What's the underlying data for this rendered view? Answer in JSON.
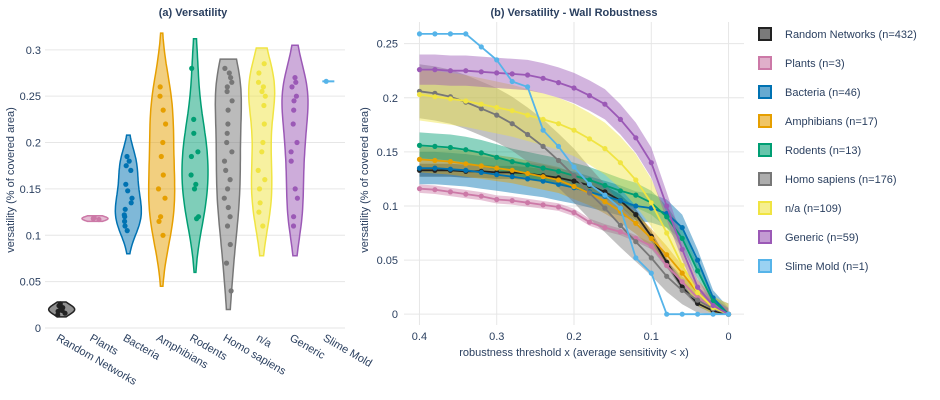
{
  "colors": {
    "Random Networks": "#222222",
    "Plants": "#cc79a7",
    "Bacteria": "#0072b2",
    "Amphibians": "#e69f00",
    "Rodents": "#009e73",
    "Homo sapiens": "#777777",
    "n/a": "#f0e442",
    "Generic": "#9b59b6",
    "Slime Mold": "#56b4e9"
  },
  "legend": [
    {
      "name": "Random Networks",
      "label": "Random Networks (n=432)"
    },
    {
      "name": "Plants",
      "label": "Plants (n=3)"
    },
    {
      "name": "Bacteria",
      "label": "Bacteria (n=46)"
    },
    {
      "name": "Amphibians",
      "label": "Amphibians (n=17)"
    },
    {
      "name": "Rodents",
      "label": "Rodents (n=13)"
    },
    {
      "name": "Homo sapiens",
      "label": "Homo sapiens (n=176)"
    },
    {
      "name": "n/a",
      "label": "n/a (n=109)"
    },
    {
      "name": "Generic",
      "label": "Generic (n=59)"
    },
    {
      "name": "Slime Mold",
      "label": "Slime Mold (n=1)"
    }
  ],
  "chart_data": [
    {
      "type": "violin",
      "title": "(a) Versatility",
      "xlabel": "",
      "ylabel": "versatility (% of covered area)",
      "ylim": [
        0,
        0.33
      ],
      "yticks": [
        0,
        0.05,
        0.1,
        0.15,
        0.2,
        0.25,
        0.3
      ],
      "ytick_labels": [
        "0",
        "0.05",
        "0.1",
        "0.15",
        "0.2",
        "0.25",
        "0.3"
      ],
      "grid": true,
      "categories": [
        "Random Networks",
        "Plants",
        "Bacteria",
        "Amphibians",
        "Rodents",
        "Homo sapiens",
        "n/a",
        "Generic",
        "Slime Mold"
      ],
      "series": [
        {
          "name": "Random Networks",
          "range": [
            0.012,
            0.028
          ],
          "points": [
            0.014,
            0.016,
            0.018,
            0.019,
            0.02,
            0.021,
            0.022,
            0.024,
            0.026
          ]
        },
        {
          "name": "Plants",
          "range": [
            0.115,
            0.121
          ],
          "points": [
            0.117,
            0.118,
            0.119
          ]
        },
        {
          "name": "Bacteria",
          "range": [
            0.08,
            0.208
          ],
          "points": [
            0.105,
            0.11,
            0.115,
            0.12,
            0.122,
            0.128,
            0.135,
            0.14,
            0.148,
            0.155,
            0.17,
            0.175,
            0.18,
            0.185
          ]
        },
        {
          "name": "Amphibians",
          "range": [
            0.045,
            0.318
          ],
          "points": [
            0.1,
            0.115,
            0.12,
            0.14,
            0.15,
            0.165,
            0.185,
            0.2,
            0.22,
            0.235,
            0.25,
            0.26
          ]
        },
        {
          "name": "Rodents",
          "range": [
            0.06,
            0.312
          ],
          "points": [
            0.118,
            0.12,
            0.15,
            0.155,
            0.165,
            0.185,
            0.19,
            0.21,
            0.225,
            0.28
          ]
        },
        {
          "name": "Homo sapiens",
          "range": [
            0.02,
            0.29
          ],
          "points": [
            0.04,
            0.07,
            0.09,
            0.11,
            0.12,
            0.13,
            0.14,
            0.15,
            0.16,
            0.17,
            0.18,
            0.19,
            0.2,
            0.21,
            0.22,
            0.235,
            0.245,
            0.255,
            0.26,
            0.265,
            0.27,
            0.275,
            0.28
          ]
        },
        {
          "name": "n/a",
          "range": [
            0.078,
            0.302
          ],
          "points": [
            0.11,
            0.125,
            0.135,
            0.15,
            0.16,
            0.17,
            0.19,
            0.2,
            0.22,
            0.24,
            0.25,
            0.255,
            0.26,
            0.265,
            0.275,
            0.285
          ]
        },
        {
          "name": "Generic",
          "range": [
            0.078,
            0.305
          ],
          "points": [
            0.11,
            0.12,
            0.14,
            0.15,
            0.18,
            0.19,
            0.2,
            0.22,
            0.235,
            0.245,
            0.25,
            0.26,
            0.265,
            0.27
          ]
        },
        {
          "name": "Slime Mold",
          "range": [
            0.266,
            0.266
          ],
          "points": [
            0.266
          ]
        }
      ]
    },
    {
      "type": "line",
      "title": "(b) Versatility - Wall Robustness",
      "xlabel": "robustness threshold x (average sensitivity < x)",
      "ylabel": "versatility (% of covered area)",
      "xlim": [
        0.42,
        -0.02
      ],
      "ylim": [
        -0.01,
        0.27
      ],
      "xticks": [
        0.4,
        0.3,
        0.2,
        0.1,
        0
      ],
      "xtick_labels": [
        "0.4",
        "0.3",
        "0.2",
        "0.1",
        "0"
      ],
      "yticks": [
        0,
        0.05,
        0.1,
        0.15,
        0.2,
        0.25
      ],
      "ytick_labels": [
        "0",
        "0.05",
        "0.1",
        "0.15",
        "0.2",
        "0.25"
      ],
      "grid": true,
      "x": [
        0.4,
        0.38,
        0.36,
        0.34,
        0.32,
        0.3,
        0.28,
        0.26,
        0.24,
        0.22,
        0.2,
        0.18,
        0.16,
        0.14,
        0.12,
        0.1,
        0.08,
        0.06,
        0.04,
        0.02,
        0
      ],
      "series": [
        {
          "name": "Random Networks",
          "band": 0.006,
          "values": [
            0.133,
            0.133,
            0.133,
            0.132,
            0.132,
            0.131,
            0.131,
            0.13,
            0.128,
            0.126,
            0.123,
            0.119,
            0.113,
            0.105,
            0.092,
            0.072,
            0.048,
            0.025,
            0.01,
            0.003,
            0
          ]
        },
        {
          "name": "Plants",
          "band": 0.004,
          "values": [
            0.116,
            0.115,
            0.113,
            0.111,
            0.109,
            0.106,
            0.105,
            0.103,
            0.101,
            0.099,
            0.094,
            0.085,
            0.08,
            0.076,
            0.07,
            0.063,
            0.045,
            0.03,
            0.015,
            0.005,
            0
          ]
        },
        {
          "name": "Bacteria",
          "band": 0.015,
          "values": [
            0.135,
            0.135,
            0.134,
            0.133,
            0.131,
            0.129,
            0.127,
            0.125,
            0.123,
            0.12,
            0.117,
            0.113,
            0.109,
            0.105,
            0.1,
            0.098,
            0.093,
            0.08,
            0.05,
            0.015,
            0
          ]
        },
        {
          "name": "Amphibians",
          "band": 0.012,
          "values": [
            0.143,
            0.142,
            0.141,
            0.139,
            0.137,
            0.135,
            0.133,
            0.13,
            0.127,
            0.124,
            0.118,
            0.112,
            0.104,
            0.095,
            0.084,
            0.07,
            0.055,
            0.038,
            0.02,
            0.006,
            0
          ]
        },
        {
          "name": "Rodents",
          "band": 0.012,
          "values": [
            0.156,
            0.155,
            0.154,
            0.152,
            0.149,
            0.145,
            0.141,
            0.138,
            0.135,
            0.132,
            0.128,
            0.124,
            0.119,
            0.114,
            0.11,
            0.103,
            0.09,
            0.07,
            0.04,
            0.012,
            0
          ]
        },
        {
          "name": "Homo sapiens",
          "band": 0.025,
          "values": [
            0.206,
            0.204,
            0.201,
            0.196,
            0.19,
            0.184,
            0.176,
            0.166,
            0.155,
            0.142,
            0.128,
            0.112,
            0.098,
            0.082,
            0.067,
            0.052,
            0.035,
            0.022,
            0.013,
            0.005,
            0
          ]
        },
        {
          "name": "n/a",
          "band": 0.024,
          "values": [
            0.203,
            0.201,
            0.199,
            0.197,
            0.194,
            0.191,
            0.188,
            0.184,
            0.18,
            0.176,
            0.17,
            0.162,
            0.153,
            0.14,
            0.124,
            0.103,
            0.075,
            0.045,
            0.02,
            0.006,
            0
          ]
        },
        {
          "name": "Generic",
          "band": 0.014,
          "values": [
            0.226,
            0.226,
            0.225,
            0.225,
            0.224,
            0.223,
            0.222,
            0.221,
            0.218,
            0.214,
            0.209,
            0.202,
            0.194,
            0.18,
            0.163,
            0.14,
            0.1,
            0.06,
            0.025,
            0.008,
            0
          ]
        },
        {
          "name": "Slime Mold",
          "band": 0,
          "values": [
            0.259,
            0.259,
            0.259,
            0.259,
            0.247,
            0.235,
            0.215,
            0.21,
            0.17,
            0.155,
            0.136,
            0.12,
            0.11,
            0.098,
            0.052,
            0.038,
            0,
            0,
            0,
            0,
            0
          ]
        }
      ]
    }
  ]
}
